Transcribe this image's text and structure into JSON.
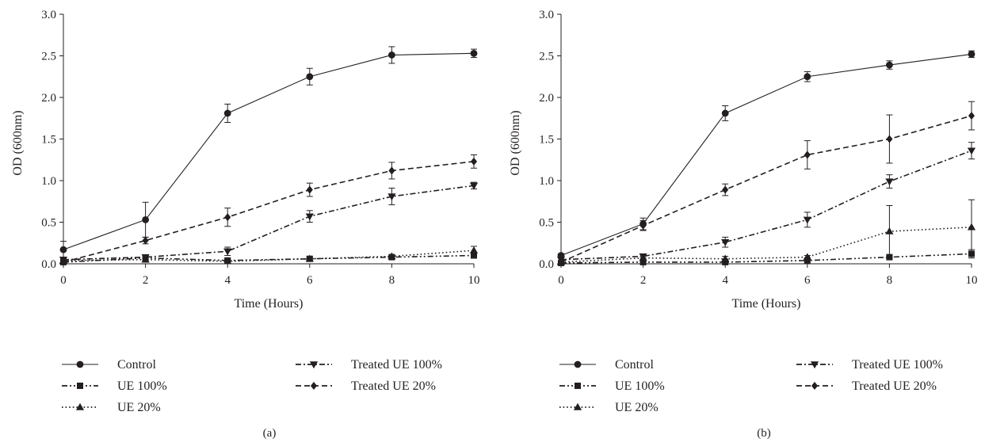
{
  "figure": {
    "panel_labels": [
      "(a)",
      "(b)"
    ]
  },
  "chart_data": [
    {
      "type": "line",
      "panel": "(a)",
      "xlabel": "Time (Hours)",
      "ylabel": "OD (600nm)",
      "x": [
        0,
        2,
        4,
        6,
        8,
        10
      ],
      "xlim": [
        0,
        10
      ],
      "ylim": [
        0,
        3.0
      ],
      "xticks": [
        "0",
        "2",
        "4",
        "6",
        "8",
        "10"
      ],
      "yticks": [
        "0.0",
        "0.5",
        "1.0",
        "1.5",
        "2.0",
        "2.5",
        "3.0"
      ],
      "grid": false,
      "legend_position": "bottom",
      "series": [
        {
          "name": "Control",
          "marker": "circle",
          "dash": "solid",
          "values": [
            0.17,
            0.53,
            1.81,
            2.25,
            2.51,
            2.53
          ],
          "errors": [
            0.1,
            0.21,
            0.11,
            0.1,
            0.1,
            0.05
          ]
        },
        {
          "name": "UE 100%",
          "marker": "square",
          "dash": "dashdotdot",
          "values": [
            0.02,
            0.07,
            0.04,
            0.06,
            0.08,
            0.1
          ],
          "errors": [
            0.02,
            0.03,
            0.02,
            0.02,
            0.02,
            0.03
          ]
        },
        {
          "name": "UE 20%",
          "marker": "triangle-up",
          "dash": "dotted",
          "values": [
            0.04,
            0.05,
            0.03,
            0.06,
            0.09,
            0.16
          ],
          "errors": [
            0.02,
            0.03,
            0.02,
            0.02,
            0.02,
            0.05
          ]
        },
        {
          "name": "Treated UE 100%",
          "marker": "triangle-down",
          "dash": "dashdot",
          "values": [
            0.05,
            0.08,
            0.15,
            0.57,
            0.81,
            0.94
          ],
          "errors": [
            0.02,
            0.02,
            0.05,
            0.07,
            0.1,
            0.04
          ]
        },
        {
          "name": "Treated UE 20%",
          "marker": "diamond",
          "dash": "dashed",
          "values": [
            0.02,
            0.28,
            0.56,
            0.89,
            1.12,
            1.23
          ],
          "errors": [
            0.02,
            0.04,
            0.11,
            0.08,
            0.1,
            0.08
          ]
        }
      ]
    },
    {
      "type": "line",
      "panel": "(b)",
      "xlabel": "Time (Hours)",
      "ylabel": "OD (600nm)",
      "x": [
        0,
        2,
        4,
        6,
        8,
        10
      ],
      "xlim": [
        0,
        10
      ],
      "ylim": [
        0,
        3.0
      ],
      "xticks": [
        "0",
        "2",
        "4",
        "6",
        "8",
        "10"
      ],
      "yticks": [
        "0.0",
        "0.5",
        "1.0",
        "1.5",
        "2.0",
        "2.5",
        "3.0"
      ],
      "grid": false,
      "legend_position": "bottom",
      "series": [
        {
          "name": "Control",
          "marker": "circle",
          "dash": "solid",
          "values": [
            0.1,
            0.48,
            1.81,
            2.25,
            2.39,
            2.52
          ],
          "errors": [
            0.02,
            0.07,
            0.09,
            0.06,
            0.05,
            0.04
          ]
        },
        {
          "name": "UE 100%",
          "marker": "square",
          "dash": "dashdotdot",
          "values": [
            0.01,
            0.02,
            0.02,
            0.04,
            0.08,
            0.12
          ],
          "errors": [
            0.01,
            0.01,
            0.01,
            0.01,
            0.02,
            0.05
          ]
        },
        {
          "name": "UE 20%",
          "marker": "triangle-up",
          "dash": "dotted",
          "values": [
            0.02,
            0.07,
            0.06,
            0.08,
            0.39,
            0.44
          ],
          "errors": [
            0.01,
            0.02,
            0.03,
            0.02,
            0.31,
            0.33
          ]
        },
        {
          "name": "Treated UE 100%",
          "marker": "triangle-down",
          "dash": "dashdot",
          "values": [
            0.05,
            0.09,
            0.26,
            0.53,
            0.99,
            1.36
          ],
          "errors": [
            0.02,
            0.02,
            0.06,
            0.09,
            0.08,
            0.1
          ]
        },
        {
          "name": "Treated UE 20%",
          "marker": "diamond",
          "dash": "dashed",
          "values": [
            0.02,
            0.46,
            0.89,
            1.31,
            1.5,
            1.78
          ],
          "errors": [
            0.02,
            0.06,
            0.07,
            0.17,
            0.29,
            0.17
          ]
        }
      ]
    }
  ]
}
